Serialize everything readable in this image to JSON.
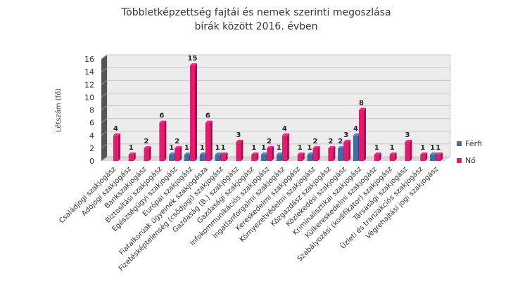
{
  "chart_data": {
    "type": "bar",
    "title": [
      "Többletképzettség fajtái és nemek szerinti megoszlása",
      "bírák között 2016. évben"
    ],
    "xlabel": "",
    "ylabel": "Létszám (fő)",
    "ylim": [
      0,
      16
    ],
    "yticks": [
      0,
      2,
      4,
      6,
      8,
      10,
      12,
      14,
      16
    ],
    "grid": true,
    "legend_position": "right",
    "categories": [
      "Családjogi szakjogász",
      "Adójogi szakjogász",
      "Bankszakjogász",
      "Biztosítási szakjogász",
      "Egészségügyi szakjogász",
      "Európai szakjogász",
      "Fiatalkorúak ügyeinek szakjogásza",
      "Fizetésképtelenség (csődjogi) szakjogász",
      "Gazdaság (B.) szakjogász",
      "Gazdasági szakjogász",
      "Infokommunikációs szakjogász",
      "Ingatlanforgalmi szakjogász",
      "Kereskedelmi szakjogász",
      "Környezetvédelmi szakjogász",
      "Közgazdász szakjogász",
      "Közlekedési szakjogász",
      "Kriminalisztikai szakjogász",
      "Külkereskedelmi szakjogász",
      "Szabályozási (kodifikátor) szakjogász",
      "Társasági szakjogász",
      "Üzleti és tranzakciós szakjogász",
      "Végrehajtási jogi szakjogász"
    ],
    "series": [
      {
        "name": "Férfi",
        "color": "#3a6ea5",
        "values": [
          0,
          0,
          0,
          0,
          1,
          1,
          1,
          1,
          0,
          0,
          1,
          1,
          0,
          1,
          0,
          2,
          4,
          0,
          0,
          0,
          0,
          1
        ]
      },
      {
        "name": "Nő",
        "color": "#e6196f",
        "values": [
          4,
          1,
          2,
          6,
          2,
          15,
          6,
          1,
          3,
          1,
          2,
          4,
          1,
          2,
          2,
          3,
          8,
          1,
          1,
          3,
          1,
          1
        ]
      }
    ]
  }
}
